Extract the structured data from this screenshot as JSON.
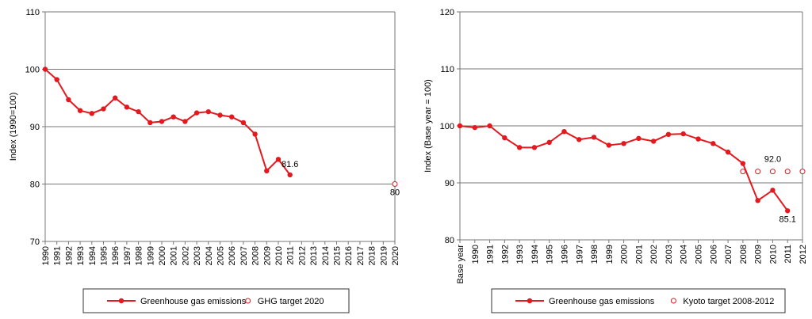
{
  "chart_data": [
    {
      "type": "line",
      "ylabel": "Index (1990=100)",
      "categories": [
        "1990",
        "1991",
        "1992",
        "1993",
        "1994",
        "1995",
        "1996",
        "1997",
        "1998",
        "1999",
        "2000",
        "2001",
        "2002",
        "2003",
        "2004",
        "2005",
        "2006",
        "2007",
        "2008",
        "2009",
        "2010",
        "2011",
        "2012",
        "2013",
        "2014",
        "2015",
        "2016",
        "2017",
        "2018",
        "2019",
        "2020"
      ],
      "ylim": [
        70,
        110
      ],
      "yticks": [
        70,
        80,
        90,
        100,
        110
      ],
      "grid": true,
      "legend": "bottom",
      "series": [
        {
          "name": "Greenhouse gas emissions",
          "color": "#e3191f",
          "style": "line",
          "values": [
            100,
            98.2,
            94.7,
            92.8,
            92.3,
            93.1,
            95.0,
            93.4,
            92.6,
            90.7,
            90.9,
            91.7,
            90.9,
            92.4,
            92.6,
            92.0,
            91.7,
            90.7,
            88.7,
            82.3,
            84.3,
            81.6,
            null,
            null,
            null,
            null,
            null,
            null,
            null,
            null,
            null
          ],
          "value_labels": [
            null,
            null,
            null,
            null,
            null,
            null,
            null,
            null,
            null,
            null,
            null,
            null,
            null,
            null,
            null,
            null,
            null,
            null,
            null,
            null,
            null,
            "81.6",
            null,
            null,
            null,
            null,
            null,
            null,
            null,
            null,
            null
          ]
        },
        {
          "name": "GHG target 2020",
          "color": "#e3191f",
          "style": "markers",
          "values": [
            null,
            null,
            null,
            null,
            null,
            null,
            null,
            null,
            null,
            null,
            null,
            null,
            null,
            null,
            null,
            null,
            null,
            null,
            null,
            null,
            null,
            null,
            null,
            null,
            null,
            null,
            null,
            null,
            null,
            null,
            80
          ],
          "value_labels": [
            null,
            null,
            null,
            null,
            null,
            null,
            null,
            null,
            null,
            null,
            null,
            null,
            null,
            null,
            null,
            null,
            null,
            null,
            null,
            null,
            null,
            null,
            null,
            null,
            null,
            null,
            null,
            null,
            null,
            null,
            "80"
          ]
        }
      ]
    },
    {
      "type": "line",
      "ylabel": "Index (Base year = 100)",
      "categories": [
        "Base year",
        "1990",
        "1991",
        "1992",
        "1993",
        "1994",
        "1995",
        "1996",
        "1997",
        "1998",
        "1999",
        "2000",
        "2001",
        "2002",
        "2003",
        "2004",
        "2005",
        "2006",
        "2007",
        "2008",
        "2009",
        "2010",
        "2011",
        "2012"
      ],
      "ylim": [
        80,
        120
      ],
      "yticks": [
        80,
        90,
        100,
        110,
        120
      ],
      "grid": true,
      "legend": "bottom",
      "series": [
        {
          "name": "Greenhouse gas emissions",
          "color": "#e3191f",
          "style": "line",
          "values": [
            100,
            99.7,
            100,
            97.9,
            96.2,
            96.2,
            97.1,
            99.0,
            97.6,
            98.0,
            96.6,
            96.9,
            97.8,
            97.3,
            98.5,
            98.6,
            97.7,
            96.9,
            95.4,
            93.4,
            86.9,
            88.7,
            85.1,
            null
          ],
          "value_labels": [
            null,
            null,
            null,
            null,
            null,
            null,
            null,
            null,
            null,
            null,
            null,
            null,
            null,
            null,
            null,
            null,
            null,
            null,
            null,
            null,
            null,
            null,
            "85.1",
            null
          ]
        },
        {
          "name": "Kyoto target 2008-2012",
          "color": "#e3191f",
          "style": "markers",
          "values": [
            null,
            null,
            null,
            null,
            null,
            null,
            null,
            null,
            null,
            null,
            null,
            null,
            null,
            null,
            null,
            null,
            null,
            null,
            null,
            92,
            92,
            92,
            92,
            92
          ],
          "value_labels": [
            null,
            null,
            null,
            null,
            null,
            null,
            null,
            null,
            null,
            null,
            null,
            null,
            null,
            null,
            null,
            null,
            null,
            null,
            null,
            null,
            null,
            "92.0",
            null,
            null
          ]
        }
      ]
    }
  ]
}
